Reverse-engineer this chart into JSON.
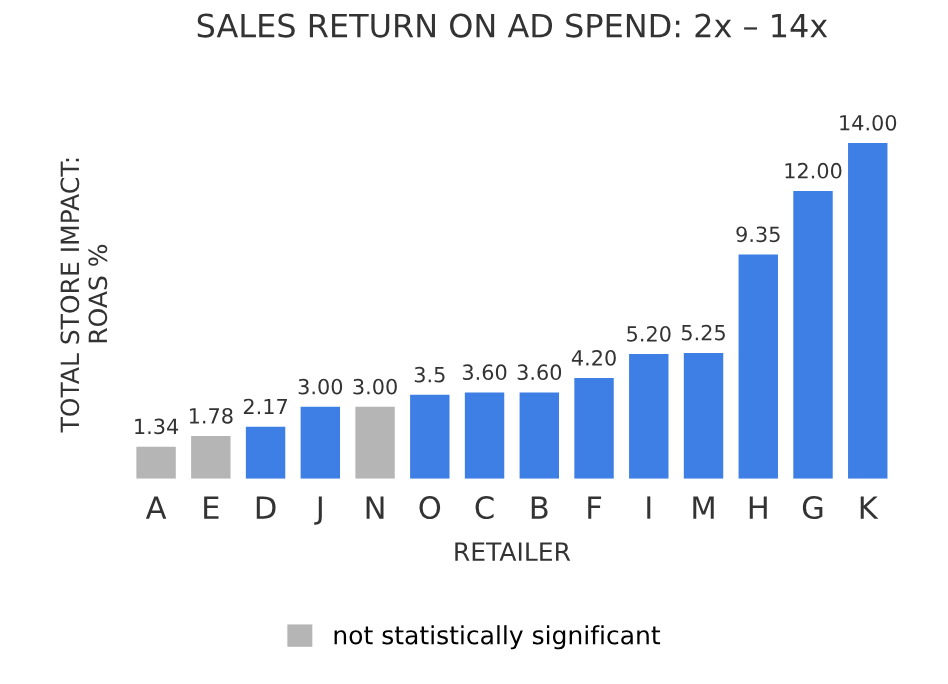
{
  "chart_data": {
    "type": "bar",
    "title": "SALES RETURN ON AD SPEND: 2x – 14x",
    "xlabel": "RETAILER",
    "ylabel": "TOTAL STORE IMPACT:\nROAS %",
    "categories": [
      "A",
      "E",
      "D",
      "J",
      "N",
      "O",
      "C",
      "B",
      "F",
      "I",
      "M",
      "H",
      "G",
      "K"
    ],
    "stacked": true,
    "series": [
      {
        "color": "#3d7fe4",
        "values": [
          null,
          null,
          2.17,
          3.0,
          null,
          3.5,
          3.6,
          3.6,
          4.2,
          5.2,
          5.25,
          9.35,
          12.0,
          14.0
        ],
        "value_labels": [
          null,
          null,
          "2.17",
          "3.00",
          null,
          "3.5",
          "3.60",
          "3.60",
          "4.20",
          "5.20",
          "5.25",
          "9.35",
          "12.00",
          "14.00"
        ]
      },
      {
        "name": "not statistically significant",
        "color": "#b5b5b5",
        "values": [
          1.34,
          1.78,
          null,
          null,
          3.0,
          null,
          null,
          null,
          null,
          null,
          null,
          null,
          null,
          null
        ],
        "value_labels": [
          "1.34",
          "1.78",
          null,
          null,
          "3.00",
          null,
          null,
          null,
          null,
          null,
          null,
          null,
          null,
          null
        ]
      }
    ],
    "grid": false,
    "legend": "bottom"
  }
}
